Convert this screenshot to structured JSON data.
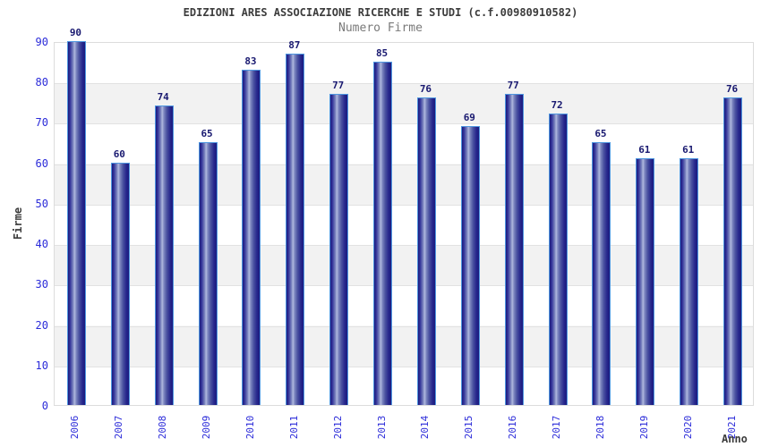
{
  "header": {
    "title": "EDIZIONI ARES ASSOCIAZIONE RICERCHE E STUDI (c.f.00980910582)",
    "subtitle": "Numero Firme"
  },
  "chart_data": {
    "type": "bar",
    "title": "EDIZIONI ARES ASSOCIAZIONE RICERCHE E STUDI (c.f.00980910582)",
    "subtitle": "Numero Firme",
    "xlabel": "Anno",
    "ylabel": "Firme",
    "categories": [
      "2006",
      "2007",
      "2008",
      "2009",
      "2010",
      "2011",
      "2012",
      "2013",
      "2014",
      "2015",
      "2016",
      "2017",
      "2018",
      "2019",
      "2020",
      "2021"
    ],
    "values": [
      90,
      60,
      74,
      65,
      83,
      87,
      77,
      85,
      76,
      69,
      77,
      72,
      65,
      61,
      61,
      76
    ],
    "ylim": [
      0,
      90
    ],
    "ytick_step": 10,
    "yticks": [
      0,
      10,
      20,
      30,
      40,
      50,
      60,
      70,
      80,
      90
    ],
    "grid": true,
    "bands": true,
    "legend": false,
    "value_labels": true,
    "colors": {
      "bar_dark": "#1b1b7e",
      "bar_mid": "#7d87c0",
      "bar_highlight": "#b0b8de",
      "bar_border": "#4f97e0",
      "tick_label": "#2b2bd9",
      "value_label": "#191970",
      "axis_title": "#3c3c3c",
      "title_text": "#3c3c3c",
      "subtitle_text": "#7a7a7a",
      "band_gray": "#f2f2f2",
      "gridline": "#e2e2e2"
    }
  }
}
